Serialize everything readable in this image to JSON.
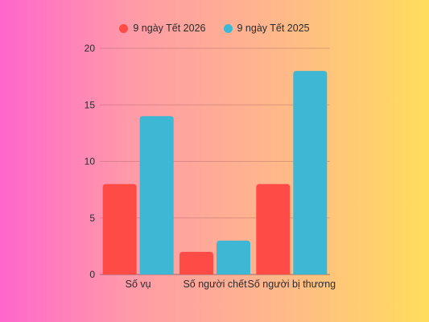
{
  "chart_data": {
    "type": "bar",
    "categories": [
      "Số vụ",
      "Số người chết",
      "Số người bị thương"
    ],
    "series": [
      {
        "name": "9 ngày Tết 2026",
        "values": [
          8,
          2,
          8
        ],
        "color": "#ff4b45"
      },
      {
        "name": "9 ngày Tết 2025",
        "values": [
          14,
          3,
          18
        ],
        "color": "#3db7d3"
      }
    ],
    "ylim": [
      0,
      20
    ],
    "yticks": [
      0,
      5,
      10,
      15,
      20
    ],
    "grid": true,
    "legend_position": "top-center"
  }
}
